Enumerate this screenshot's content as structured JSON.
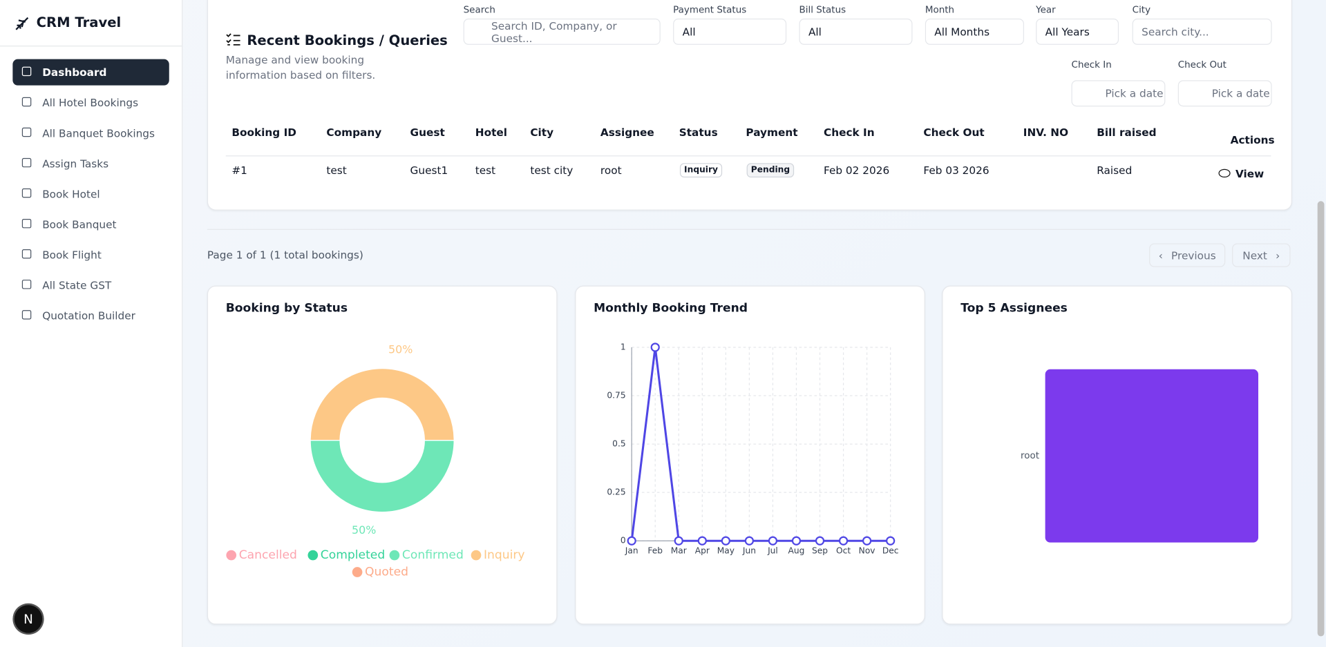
{
  "sidebar": {
    "brand": "CRM Travel",
    "menu": [
      "Dashboard",
      "All Hotel Bookings",
      "All Banquet Bookings",
      "Assign Tasks",
      "Book Hotel",
      "Book Banquet",
      "Book Flight",
      "All State GST",
      "Quotation Builder"
    ]
  },
  "badge": "N",
  "header": {
    "title": "Recent Bookings / Queries",
    "subtitle": "Manage and view booking information based on filters."
  },
  "filters": {
    "search": {
      "label": "Search",
      "placeholder": "Search ID, Company, or Guest..."
    },
    "payment_status": {
      "label": "Payment Status",
      "value": "All"
    },
    "bill_status": {
      "label": "Bill Status",
      "value": "All"
    },
    "month": {
      "label": "Month",
      "value": "All Months"
    },
    "year": {
      "label": "Year",
      "value": "All Years"
    },
    "city": {
      "label": "City",
      "placeholder": "Search city..."
    },
    "check_in": {
      "label": "Check In",
      "placeholder": "Pick a date"
    },
    "check_out": {
      "label": "Check Out",
      "placeholder": "Pick a date"
    }
  },
  "table": {
    "columns": [
      "Booking ID",
      "Company",
      "Guest",
      "Hotel",
      "City",
      "Assignee",
      "Status",
      "Payment",
      "Check In",
      "Check Out",
      "INV. NO",
      "Bill raised",
      "Actions"
    ],
    "rows": [
      [
        "#1",
        "test",
        "Guest1",
        "test",
        "test city",
        "root",
        "Inquiry",
        "Pending",
        "Feb 02 2026",
        "Feb 03 2026",
        null,
        "Raised",
        "View"
      ]
    ]
  },
  "pagination": {
    "info": "Page 1 of 1 (1 total bookings)",
    "previous": "Previous",
    "next": "Next"
  },
  "chart_data": [
    {
      "type": "pie",
      "title": "Booking by Status",
      "categories": [
        "Cancelled",
        "Completed",
        "Confirmed",
        "Inquiry",
        "Quoted"
      ],
      "values": [
        0,
        0,
        50,
        50,
        0
      ],
      "value_labels": [
        null,
        null,
        "50%",
        "50%",
        null
      ],
      "colors": [
        "#fda4af",
        "#34d399",
        "#6ee7b7",
        "#fdc886",
        "#fdab8a"
      ],
      "donut": true
    },
    {
      "type": "line",
      "title": "Monthly Booking Trend",
      "categories": [
        "Jan",
        "Feb",
        "Mar",
        "Apr",
        "May",
        "Jun",
        "Jul",
        "Aug",
        "Sep",
        "Oct",
        "Nov",
        "Dec"
      ],
      "values": [
        0,
        1,
        0,
        0,
        0,
        0,
        0,
        0,
        0,
        0,
        0,
        0
      ],
      "color": "#4f46e5",
      "ylim": [
        0,
        1
      ],
      "yticks": [
        0,
        0.25,
        0.5,
        0.75,
        1
      ],
      "grid": true
    },
    {
      "type": "hbar",
      "title": "Top 5 Assignees",
      "categories": [
        "root"
      ],
      "values": [
        1
      ],
      "color": "#7c3aed",
      "xlim": [
        0,
        1
      ]
    }
  ]
}
